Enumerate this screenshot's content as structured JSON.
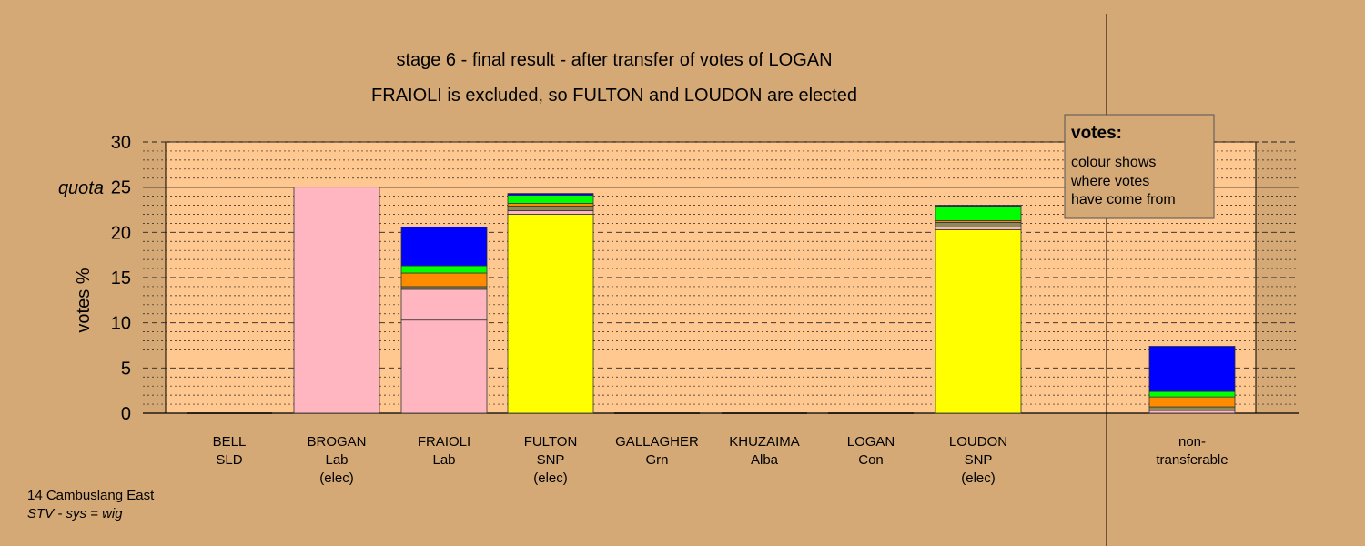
{
  "chart_data": {
    "type": "bar",
    "stacked": true,
    "title": "stage 6 - final result - after transfer of votes of LOGAN",
    "subtitle": "FRAIOLI is excluded, so FULTON and LOUDON are elected",
    "ylabel": "votes %",
    "ylim": [
      0,
      30
    ],
    "yticks": [
      "0",
      "5",
      "10",
      "15",
      "20",
      "25",
      "30"
    ],
    "quota": {
      "label": "quota",
      "value": 25
    },
    "grid": true,
    "categories": [
      {
        "name": "BELL",
        "party": "SLD",
        "status": ""
      },
      {
        "name": "BROGAN",
        "party": "Lab",
        "status": "(elec)"
      },
      {
        "name": "FRAIOLI",
        "party": "Lab",
        "status": ""
      },
      {
        "name": "FULTON",
        "party": "SNP",
        "status": "(elec)"
      },
      {
        "name": "GALLAGHER",
        "party": "Grn",
        "status": ""
      },
      {
        "name": "KHUZAIMA",
        "party": "Alba",
        "status": ""
      },
      {
        "name": "LOGAN",
        "party": "Con",
        "status": ""
      },
      {
        "name": "LOUDON",
        "party": "SNP",
        "status": "(elec)"
      },
      {
        "name": "non-",
        "party": "transferable",
        "status": ""
      }
    ],
    "segment_colors": [
      "#FFFF00",
      "#FFB6C1",
      "#FFB6C1",
      "#8B8B55",
      "#FF8C00",
      "#00FF00",
      "#0000FF"
    ],
    "segments": [
      [
        0,
        0,
        0,
        0,
        0,
        0,
        0
      ],
      [
        0,
        25.0,
        0,
        0,
        0,
        0,
        0
      ],
      [
        0,
        10.3,
        3.4,
        0.3,
        1.5,
        0.8,
        4.3
      ],
      [
        22.0,
        0,
        0.4,
        0.5,
        0.3,
        0.9,
        0.2
      ],
      [
        0,
        0,
        0,
        0,
        0,
        0,
        0
      ],
      [
        0,
        0,
        0,
        0,
        0,
        0,
        0
      ],
      [
        0,
        0,
        0,
        0,
        0,
        0,
        0
      ],
      [
        20.3,
        0,
        0.3,
        0.5,
        0.2,
        1.6,
        0.1
      ],
      [
        0,
        0,
        0.3,
        0.4,
        1.1,
        0.6,
        5.0
      ]
    ],
    "legend": {
      "title": "votes:",
      "lines": [
        "colour shows",
        "where votes",
        "have come from"
      ]
    }
  },
  "footer": {
    "line1": "14 Cambuslang East",
    "line2": "STV - sys = wig"
  }
}
